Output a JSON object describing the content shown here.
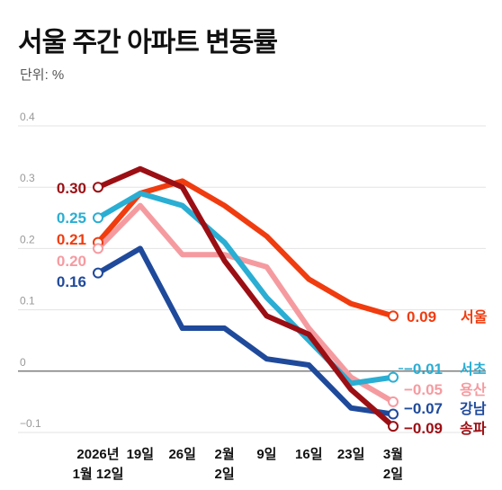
{
  "title": "서울 주간 아파트 변동률",
  "unit_label": "단위: %",
  "chart_data": {
    "type": "line",
    "title": "서울 주간 아파트 변동률",
    "ylabel": "단위: %",
    "ylim": [
      -0.1,
      0.4
    ],
    "yticks": [
      "0.4",
      "0.3",
      "0.2",
      "0.1",
      "0",
      "−0.1"
    ],
    "ytick_values": [
      0.4,
      0.3,
      0.2,
      0.1,
      0,
      -0.1
    ],
    "grid": true,
    "x": [
      [
        "2026년",
        "1월 12일"
      ],
      [
        "19일"
      ],
      [
        "26일"
      ],
      [
        "2월",
        "2일"
      ],
      [
        "9일"
      ],
      [
        "16일"
      ],
      [
        "23일"
      ],
      [
        "3월",
        "2일"
      ]
    ],
    "series": [
      {
        "name": "서울",
        "color": "#f03c0f",
        "values": [
          0.21,
          0.29,
          0.31,
          0.27,
          0.22,
          0.15,
          0.11,
          0.09
        ],
        "start_label": "0.21",
        "end_label": "0.09"
      },
      {
        "name": "서초",
        "color": "#2aaed3",
        "values": [
          0.25,
          0.29,
          0.27,
          0.21,
          0.12,
          0.05,
          -0.02,
          -0.01
        ],
        "start_label": "0.25",
        "end_label": "−0.01"
      },
      {
        "name": "용산",
        "color": "#f59ba0",
        "values": [
          0.2,
          0.27,
          0.19,
          0.19,
          0.17,
          0.07,
          -0.01,
          -0.05
        ],
        "start_label": "0.20",
        "end_label": "−0.05"
      },
      {
        "name": "강남",
        "color": "#1f4a9b",
        "values": [
          0.16,
          0.2,
          0.07,
          0.07,
          0.02,
          0.01,
          -0.06,
          -0.07
        ],
        "start_label": "0.16",
        "end_label": "−0.07"
      },
      {
        "name": "송파",
        "color": "#9b0f14",
        "values": [
          0.3,
          0.33,
          0.3,
          0.18,
          0.09,
          0.06,
          -0.03,
          -0.09
        ],
        "start_label": "0.30",
        "end_label": "−0.09"
      }
    ]
  }
}
